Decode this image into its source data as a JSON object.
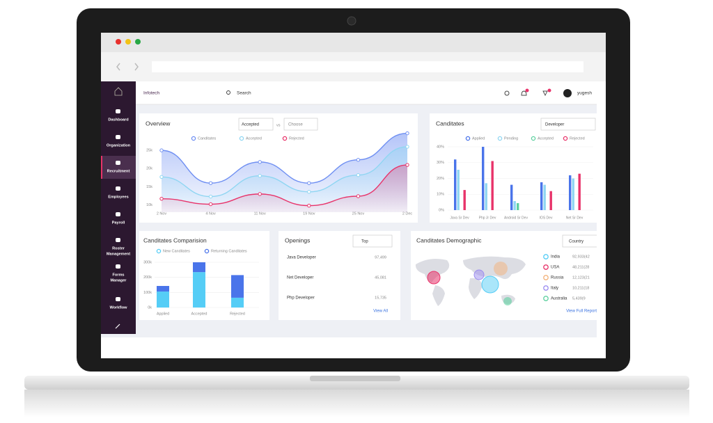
{
  "sidebar": {
    "menu": [
      [
        "Dashboard"
      ],
      [
        "Organization"
      ],
      [
        "Recruitment"
      ],
      [
        "Employees"
      ],
      [
        "Payroll"
      ],
      [
        "Roster",
        "Management"
      ],
      [
        "Forms",
        "Manager"
      ],
      [
        "Workflow"
      ]
    ]
  },
  "topbar": {
    "brand": "Infotech",
    "search": "Search",
    "user": "yugesh"
  },
  "overview": {
    "type": "line",
    "title": "Overview",
    "filter": "Accepted",
    "vs": "vs",
    "compare": "Choose",
    "x": [
      "2 Nov",
      "4 Nov",
      "11 Nov",
      "19 Nov",
      "25 Nov",
      "2 Dec"
    ],
    "ylim": [
      8000,
      30000
    ],
    "yticks": [
      {
        "value": 10000,
        "label": "10k"
      },
      {
        "value": 15000,
        "label": "15k"
      },
      {
        "value": 20000,
        "label": "20k"
      },
      {
        "value": 25000,
        "label": "25k"
      }
    ],
    "series": [
      {
        "name": "Canditates",
        "color": "#6f8ff2",
        "values": [
          25000,
          16000,
          21800,
          16000,
          22400,
          29700
        ]
      },
      {
        "name": "Accepted",
        "color": "#8fd6f2",
        "values": [
          17700,
          12300,
          18000,
          13600,
          18200,
          26000
        ]
      },
      {
        "name": "Rejected",
        "color": "#e8336a",
        "values": [
          11700,
          10200,
          13000,
          9800,
          12400,
          21000
        ]
      }
    ]
  },
  "candidates": {
    "type": "bar",
    "title": "Canditates",
    "filter": "Developer",
    "categories": [
      "Java Sr Dev",
      "Php Jr Dev",
      "Android Sr Dev",
      "IOS Dev",
      "Net Sr Dev"
    ],
    "ylim": [
      0,
      40
    ],
    "yticks": [
      {
        "value": 0,
        "label": "0%"
      },
      {
        "value": 10,
        "label": "10%"
      },
      {
        "value": 20,
        "label": "20%"
      },
      {
        "value": 30,
        "label": "30%"
      },
      {
        "value": 40,
        "label": "40%"
      }
    ],
    "grid": true,
    "series": [
      {
        "name": "Applied",
        "color": "#4a74ea",
        "values": [
          32,
          40,
          16,
          17.6,
          22
        ]
      },
      {
        "name": "Pending",
        "color": "#8fd6f2",
        "values": [
          25.5,
          17,
          5.7,
          16,
          20
        ]
      },
      {
        "name": "Accepted",
        "color": "#5fd0a0",
        "values": [
          null,
          null,
          4.4,
          null,
          null
        ]
      },
      {
        "name": "Rejected",
        "color": "#e8336a",
        "values": [
          12.7,
          31,
          null,
          12,
          23
        ]
      }
    ]
  },
  "comparison": {
    "type": "stacked-bar",
    "title": "Canditates Comparision",
    "categories": [
      "Applied",
      "Accepted",
      "Rejected"
    ],
    "ylim": [
      0,
      300000
    ],
    "yticks": [
      {
        "value": 0,
        "label": "0k"
      },
      {
        "value": 100000,
        "label": "100k"
      },
      {
        "value": 200000,
        "label": "200k"
      },
      {
        "value": 300000,
        "label": "300k"
      }
    ],
    "grid": true,
    "series": [
      {
        "name": "New Canditates",
        "color": "#55cdf6",
        "values": [
          106000,
          235000,
          65000
        ]
      },
      {
        "name": "Returning Canditates",
        "color": "#4a74ea",
        "values": [
          37000,
          65000,
          150000
        ]
      }
    ]
  },
  "openings": {
    "title": "Openings",
    "filter": "Top",
    "rows": [
      [
        "Java Developer",
        "97,499"
      ],
      [
        "Net Developer",
        "45,081"
      ],
      [
        "Php Developer",
        "15,735"
      ]
    ],
    "link": "View All"
  },
  "demographic": {
    "title": "Canditates Demographic",
    "filter": "Country",
    "rows": [
      {
        "country": "India",
        "value": "92,933(42",
        "color": "#55cdf6"
      },
      {
        "country": "USA",
        "value": "48,211(28",
        "color": "#e8336a"
      },
      {
        "country": "Russia",
        "value": "12,123(21",
        "color": "#f3b27a"
      },
      {
        "country": "Italy",
        "value": "10,211(18",
        "color": "#9b8cf0"
      },
      {
        "country": "Australia",
        "value": "5,439(9",
        "color": "#5fd0a0"
      }
    ],
    "link": "View Full Report"
  }
}
